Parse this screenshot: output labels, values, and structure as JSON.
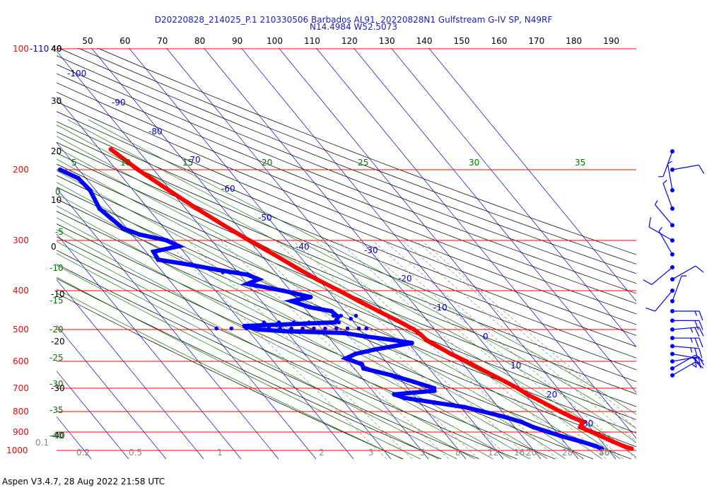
{
  "header": {
    "title_line1": "D20220828_214025_P.1 210330506 Barbados AL91, 20220828N1 Gulfstream G-IV SP, N49RF",
    "title_line2": "N14.4984 W52.5073"
  },
  "footer": {
    "text": "Aspen V3.4.7, 28 Aug 2022  21:58 UTC"
  },
  "colors": {
    "isobar": "#ff0000",
    "isotherm": "#0000cc",
    "dry_adiabat": "#000000",
    "moist_adiabat": "#007700",
    "mixing_ratio": "#888888",
    "temperature": "#ff0000",
    "dewpoint": "#0000ff",
    "wind": "#0000ff"
  },
  "chart_data": {
    "type": "skew-t",
    "pressure_axis": {
      "ticks": [
        100,
        200,
        300,
        400,
        500,
        600,
        700,
        800,
        900,
        1000
      ],
      "labels": [
        "100",
        "200",
        "300",
        "400",
        "500",
        "600",
        "700",
        "800",
        "900",
        "1000"
      ],
      "top_label_suffix": "-110",
      "range": [
        100,
        1000
      ]
    },
    "top_axis": {
      "labels": [
        "40",
        "50",
        "60",
        "70",
        "80",
        "90",
        "100",
        "110",
        "120",
        "130",
        "140",
        "150",
        "160",
        "170",
        "180",
        "190"
      ]
    },
    "isotherm_labels": [
      "-100",
      "-90",
      "-80",
      "-70",
      "-60",
      "-50",
      "-40",
      "-30",
      "-20",
      "-10",
      "0",
      "10",
      "20",
      "30"
    ],
    "theta_labels_left": [
      "40",
      "30",
      "20",
      "10",
      "0",
      "-10",
      "-20",
      "-30",
      "-40"
    ],
    "theta_e_labels": {
      "top": [
        "5",
        "10",
        "15",
        "20",
        "25",
        "30",
        "35"
      ],
      "left": [
        "0",
        "-5",
        "-10",
        "-15",
        "-20",
        "-25",
        "-30",
        "-35",
        "-40"
      ]
    },
    "mixing_ratio_labels": [
      "0.1",
      "0.2",
      "0.5",
      "1",
      "2",
      "3",
      "5",
      "8",
      "12",
      "16",
      "20",
      "28",
      "36",
      "40"
    ],
    "temperature_profile": [
      {
        "p": 178,
        "t": -47.0
      },
      {
        "p": 200,
        "t": -44.2
      },
      {
        "p": 225,
        "t": -40.5
      },
      {
        "p": 250,
        "t": -37.0
      },
      {
        "p": 275,
        "t": -33.5
      },
      {
        "p": 300,
        "t": -30.0
      },
      {
        "p": 325,
        "t": -26.5
      },
      {
        "p": 350,
        "t": -23.5
      },
      {
        "p": 375,
        "t": -20.5
      },
      {
        "p": 400,
        "t": -17.0
      },
      {
        "p": 425,
        "t": -14.0
      },
      {
        "p": 450,
        "t": -11.0
      },
      {
        "p": 475,
        "t": -8.0
      },
      {
        "p": 500,
        "t": -5.5
      },
      {
        "p": 515,
        "t": -4.8
      },
      {
        "p": 530,
        "t": -4.5
      },
      {
        "p": 550,
        "t": -3.0
      },
      {
        "p": 575,
        "t": -1.0
      },
      {
        "p": 600,
        "t": 1.5
      },
      {
        "p": 625,
        "t": 3.5
      },
      {
        "p": 650,
        "t": 5.5
      },
      {
        "p": 675,
        "t": 7.5
      },
      {
        "p": 700,
        "t": 9.3
      },
      {
        "p": 725,
        "t": 10.5
      },
      {
        "p": 750,
        "t": 12.3
      },
      {
        "p": 775,
        "t": 14.0
      },
      {
        "p": 800,
        "t": 15.6
      },
      {
        "p": 825,
        "t": 17.3
      },
      {
        "p": 850,
        "t": 19.5
      },
      {
        "p": 860,
        "t": 18.5
      },
      {
        "p": 875,
        "t": 17.5
      },
      {
        "p": 900,
        "t": 19.5
      },
      {
        "p": 925,
        "t": 21.3
      },
      {
        "p": 950,
        "t": 23.0
      },
      {
        "p": 975,
        "t": 24.9
      },
      {
        "p": 990,
        "t": 26.5
      }
    ],
    "dewpoint_profile": [
      {
        "p": 200,
        "t": -65.0
      },
      {
        "p": 210,
        "t": -62.0
      },
      {
        "p": 225,
        "t": -61.5
      },
      {
        "p": 250,
        "t": -63.0
      },
      {
        "p": 265,
        "t": -62.0
      },
      {
        "p": 280,
        "t": -61.0
      },
      {
        "p": 290,
        "t": -58.0
      },
      {
        "p": 300,
        "t": -52.0
      },
      {
        "p": 310,
        "t": -50.0
      },
      {
        "p": 320,
        "t": -58.0
      },
      {
        "p": 335,
        "t": -58.5
      },
      {
        "p": 345,
        "t": -51.0
      },
      {
        "p": 355,
        "t": -45.0
      },
      {
        "p": 365,
        "t": -38.0
      },
      {
        "p": 375,
        "t": -36.0
      },
      {
        "p": 385,
        "t": -40.0
      },
      {
        "p": 400,
        "t": -32.0
      },
      {
        "p": 415,
        "t": -26.0
      },
      {
        "p": 425,
        "t": -32.0
      },
      {
        "p": 440,
        "t": -28.5
      },
      {
        "p": 450,
        "t": -23.5
      },
      {
        "p": 465,
        "t": -23.0
      },
      {
        "p": 480,
        "t": -25.0
      },
      {
        "p": 490,
        "t": -50.0
      },
      {
        "p": 500,
        "t": -47.0
      },
      {
        "p": 505,
        "t": -40.0
      },
      {
        "p": 510,
        "t": -25.0
      },
      {
        "p": 520,
        "t": -20.0
      },
      {
        "p": 530,
        "t": -14.0
      },
      {
        "p": 540,
        "t": -9.0
      },
      {
        "p": 560,
        "t": -20.0
      },
      {
        "p": 575,
        "t": -26.5
      },
      {
        "p": 590,
        "t": -30.0
      },
      {
        "p": 610,
        "t": -27.0
      },
      {
        "p": 625,
        "t": -27.5
      },
      {
        "p": 650,
        "t": -21.5
      },
      {
        "p": 675,
        "t": -17.0
      },
      {
        "p": 700,
        "t": -13.0
      },
      {
        "p": 710,
        "t": -13.5
      },
      {
        "p": 725,
        "t": -25.0
      },
      {
        "p": 740,
        "t": -23.0
      },
      {
        "p": 760,
        "t": -16.0
      },
      {
        "p": 780,
        "t": -9.0
      },
      {
        "p": 800,
        "t": -5.0
      },
      {
        "p": 825,
        "t": -0.5
      },
      {
        "p": 850,
        "t": 3.0
      },
      {
        "p": 875,
        "t": 5.0
      },
      {
        "p": 900,
        "t": 8.0
      },
      {
        "p": 925,
        "t": 11.0
      },
      {
        "p": 950,
        "t": 14.5
      },
      {
        "p": 975,
        "t": 17.5
      },
      {
        "p": 990,
        "t": 18.5
      }
    ],
    "dewpoint_sparse_points": [
      {
        "p": 497,
        "t": -58
      },
      {
        "p": 497,
        "t": -54
      },
      {
        "p": 497,
        "t": -50
      },
      {
        "p": 497,
        "t": -47
      },
      {
        "p": 497,
        "t": -44
      },
      {
        "p": 497,
        "t": -41
      },
      {
        "p": 497,
        "t": -38
      },
      {
        "p": 497,
        "t": -35
      },
      {
        "p": 497,
        "t": -32
      },
      {
        "p": 497,
        "t": -29
      },
      {
        "p": 497,
        "t": -26
      },
      {
        "p": 497,
        "t": -23
      },
      {
        "p": 497,
        "t": -20
      },
      {
        "p": 497,
        "t": -18
      },
      {
        "p": 480,
        "t": -44
      },
      {
        "p": 480,
        "t": -40
      },
      {
        "p": 480,
        "t": -36
      },
      {
        "p": 480,
        "t": -32
      },
      {
        "p": 480,
        "t": -28
      },
      {
        "p": 480,
        "t": -24
      },
      {
        "p": 470,
        "t": -20
      },
      {
        "p": 462,
        "t": -24
      },
      {
        "p": 462,
        "t": -22
      },
      {
        "p": 462,
        "t": -18
      },
      {
        "p": 360,
        "t": -44
      },
      {
        "p": 360,
        "t": -42
      },
      {
        "p": 360,
        "t": -40
      }
    ],
    "wind_barbs": [
      {
        "p": 180,
        "dir": 200,
        "spd": 5
      },
      {
        "p": 200,
        "dir": 80,
        "spd": 10
      },
      {
        "p": 225,
        "dir": 350,
        "spd": 5
      },
      {
        "p": 250,
        "dir": 340,
        "spd": 5
      },
      {
        "p": 275,
        "dir": 320,
        "spd": 5
      },
      {
        "p": 300,
        "dir": 300,
        "spd": 10
      },
      {
        "p": 325,
        "dir": 330,
        "spd": 5
      },
      {
        "p": 350,
        "dir": 230,
        "spd": 10
      },
      {
        "p": 375,
        "dir": 60,
        "spd": 10
      },
      {
        "p": 400,
        "dir": 220,
        "spd": 10
      },
      {
        "p": 425,
        "dir": 20,
        "spd": 5
      },
      {
        "p": 450,
        "dir": 90,
        "spd": 15
      },
      {
        "p": 475,
        "dir": 90,
        "spd": 20
      },
      {
        "p": 500,
        "dir": 85,
        "spd": 25
      },
      {
        "p": 525,
        "dir": 90,
        "spd": 25
      },
      {
        "p": 550,
        "dir": 95,
        "spd": 25
      },
      {
        "p": 575,
        "dir": 100,
        "spd": 20
      },
      {
        "p": 600,
        "dir": 80,
        "spd": 20
      },
      {
        "p": 625,
        "dir": 60,
        "spd": 20
      },
      {
        "p": 650,
        "dir": 60,
        "spd": 15
      }
    ]
  }
}
